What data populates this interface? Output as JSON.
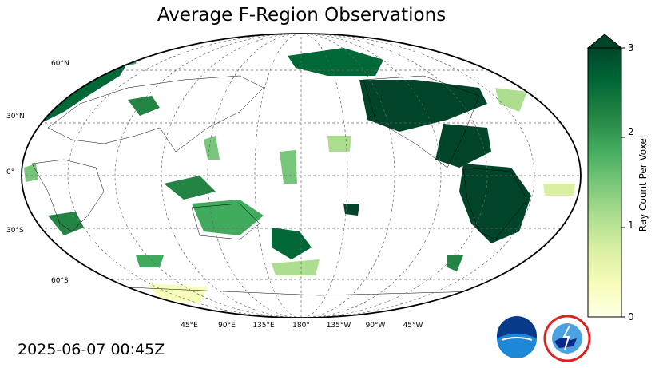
{
  "title": "Average F-Region Observations",
  "lat_labels": [
    "60°N",
    "30°N",
    "0°",
    "30°S",
    "60°S"
  ],
  "lon_labels": [
    "45°E",
    "90°E",
    "135°E",
    "180°",
    "135°W",
    "90°W",
    "45°W"
  ],
  "colorbar": {
    "label": "Ray Count Per Voxel",
    "ticks": [
      "0",
      "1",
      "2",
      "3"
    ],
    "range": [
      0,
      3
    ],
    "extend": "max",
    "colors": [
      "#ffffe5",
      "#f7fcb9",
      "#d9f0a3",
      "#addd8e",
      "#78c679",
      "#41ab5d",
      "#238443",
      "#006837",
      "#004529"
    ]
  },
  "timestamp": "2025-06-07 00:45Z",
  "logos": {
    "noaa": "NOAA",
    "nws": "NATIONAL WEATHER SERVICE"
  }
}
